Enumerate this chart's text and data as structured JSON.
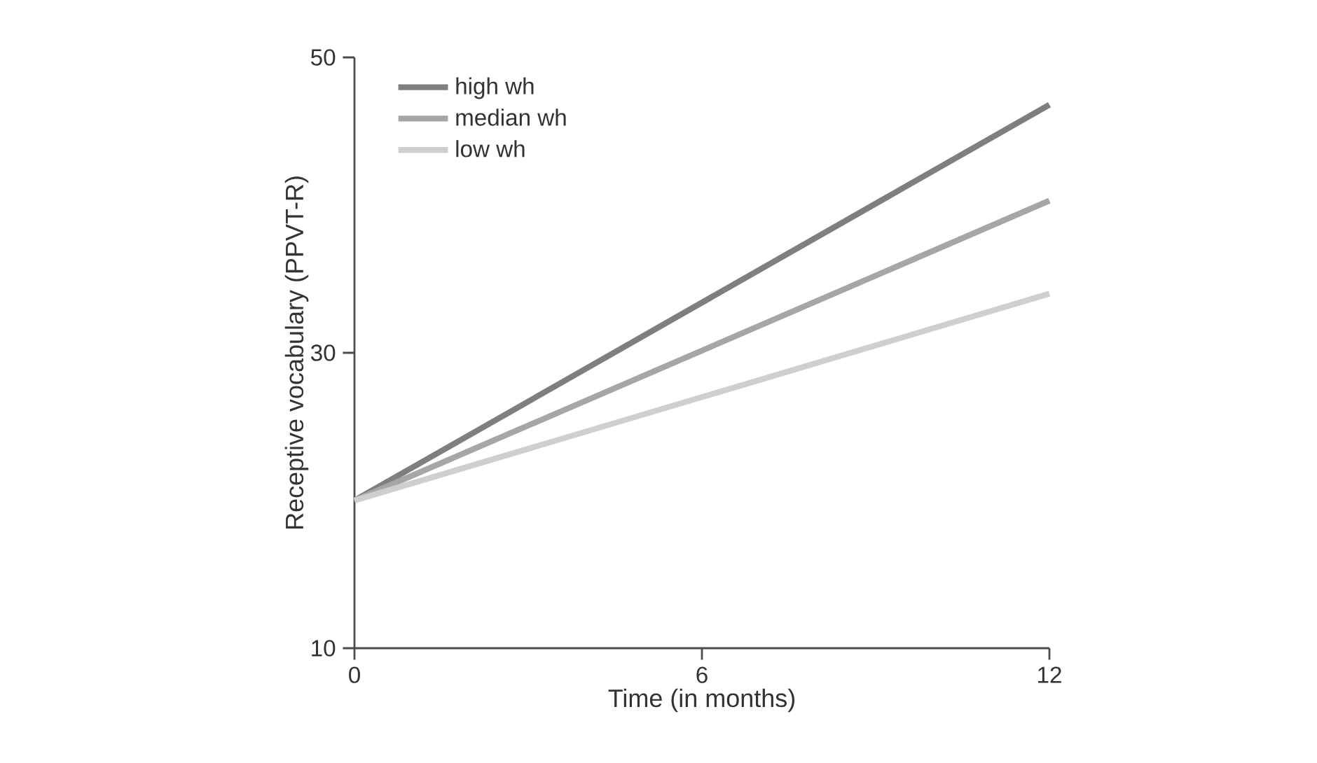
{
  "chart_data": {
    "type": "line",
    "xlabel": "Time (in months)",
    "ylabel": "Receptive vocabulary (PPVT-R)",
    "x": [
      0,
      12
    ],
    "series": [
      {
        "name": "high wh",
        "color": "#7f7f7f",
        "values": [
          20,
          46.8
        ]
      },
      {
        "name": "median wh",
        "color": "#a6a6a6",
        "values": [
          20,
          40.3
        ]
      },
      {
        "name": "low wh",
        "color": "#cfcfcf",
        "values": [
          20,
          34
        ]
      }
    ],
    "xlim": [
      0,
      12
    ],
    "xticks": [
      0,
      6,
      12
    ],
    "ylim": [
      10,
      50
    ],
    "yticks": [
      10,
      30,
      50
    ],
    "grid": false,
    "legend": "top left",
    "marker": "none",
    "line_style": "solid"
  }
}
